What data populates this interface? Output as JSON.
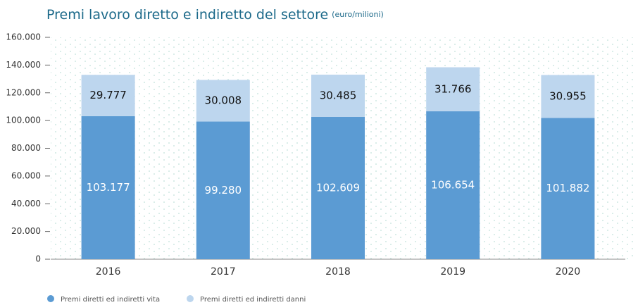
{
  "chart_data": {
    "type": "stacked_bar",
    "title": "Premi lavoro diretto e indiretto del settore",
    "subtitle": "(euro/milioni)",
    "categories": [
      "2016",
      "2017",
      "2018",
      "2019",
      "2020"
    ],
    "series": [
      {
        "name": "Premi diretti ed indiretti vita",
        "color": "#5b9bd3",
        "values": [
          103177,
          99280,
          102609,
          106654,
          101882
        ],
        "value_labels": [
          "103.177",
          "99.280",
          "102.609",
          "106.654",
          "101.882"
        ]
      },
      {
        "name": "Premi diretti ed indiretti danni",
        "color": "#bdd6ee",
        "values": [
          29777,
          30008,
          30485,
          31766,
          30955
        ],
        "value_labels": [
          "29.777",
          "30.008",
          "30.485",
          "31.766",
          "30.955"
        ]
      }
    ],
    "ylim": [
      0,
      160000
    ],
    "yticks": [
      {
        "value": 0,
        "label": "0"
      },
      {
        "value": 20000,
        "label": "20.000"
      },
      {
        "value": 40000,
        "label": "40.000"
      },
      {
        "value": 60000,
        "label": "60.000"
      },
      {
        "value": 80000,
        "label": "80.000"
      },
      {
        "value": 100000,
        "label": "100.000"
      },
      {
        "value": 120000,
        "label": "120.000"
      },
      {
        "value": 140000,
        "label": "140.000"
      },
      {
        "value": 160000,
        "label": "160.000"
      }
    ],
    "legend": "bottom-left"
  }
}
